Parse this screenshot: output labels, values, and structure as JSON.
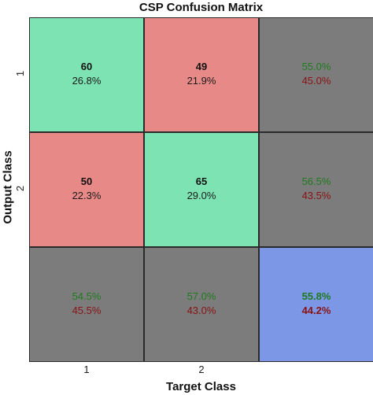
{
  "title": "CSP Confusion Matrix",
  "xlabel": "Target Class",
  "ylabel": "Output Class",
  "x_ticks": [
    "1",
    "2"
  ],
  "y_ticks": [
    "1",
    "2"
  ],
  "colors": {
    "correct": "#7de3b3",
    "incorrect": "#e78a87",
    "summary": "#7c7c7c",
    "total": "#7b97e6",
    "grid": "#2a2a2a"
  },
  "chart_data": {
    "type": "heatmap",
    "title": "CSP Confusion Matrix",
    "xlabel": "Target Class",
    "ylabel": "Output Class",
    "x_categories": [
      "1",
      "2"
    ],
    "y_categories": [
      "1",
      "2"
    ],
    "counts": [
      [
        60,
        49
      ],
      [
        50,
        65
      ]
    ],
    "count_percent": [
      [
        "26.8%",
        "21.9%"
      ],
      [
        "22.3%",
        "29.0%"
      ]
    ],
    "row_summary": [
      [
        "55.0%",
        "45.0%"
      ],
      [
        "56.5%",
        "43.5%"
      ]
    ],
    "col_summary": [
      [
        "54.5%",
        "45.5%"
      ],
      [
        "57.0%",
        "43.0%"
      ]
    ],
    "overall": [
      "55.8%",
      "44.2%"
    ]
  }
}
